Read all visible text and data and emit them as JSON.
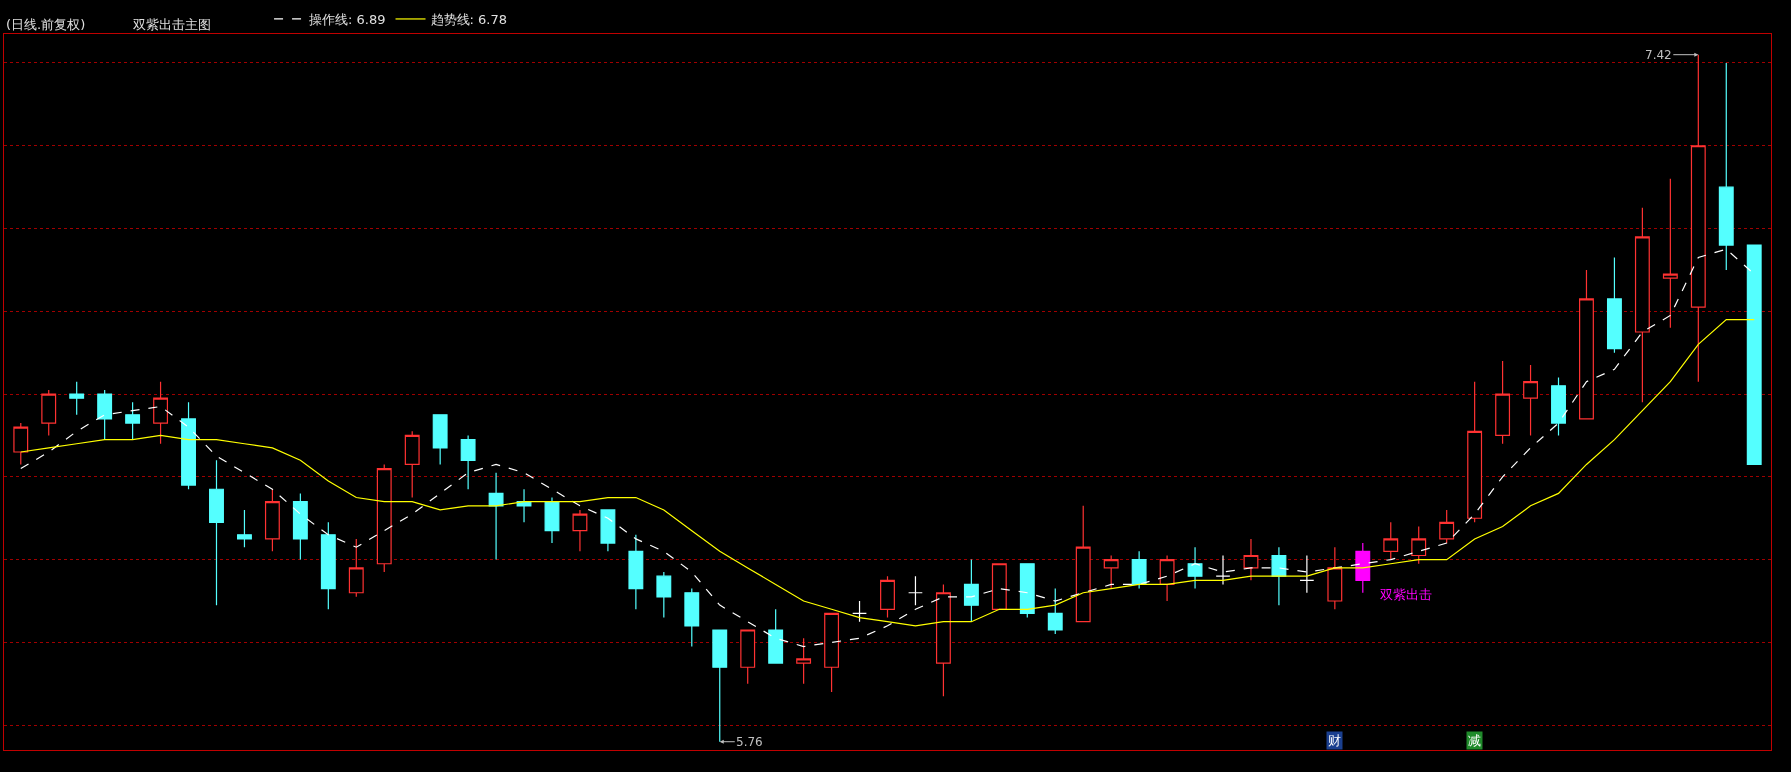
{
  "chart_data": {
    "type": "candlestick",
    "title": "(日线.前复权)",
    "subtitle": "双紫出击主图",
    "categories": [
      null,
      null,
      null,
      null,
      null,
      null,
      null,
      null,
      null,
      null,
      null,
      null,
      null,
      null,
      null,
      null,
      null,
      null,
      null,
      null,
      null,
      null,
      null,
      null,
      null,
      null,
      null,
      null,
      null,
      null,
      null,
      null,
      null,
      null,
      null,
      null,
      null,
      null,
      null,
      null,
      null,
      null,
      null,
      null,
      null,
      null,
      null,
      null,
      null,
      null,
      null,
      null,
      null,
      null,
      null,
      null,
      null,
      null,
      null,
      null,
      null,
      null,
      null
    ],
    "ohlc": [
      [
        6.46,
        6.53,
        6.43,
        6.52
      ],
      [
        6.53,
        6.61,
        6.5,
        6.6
      ],
      [
        6.6,
        6.63,
        6.55,
        6.59
      ],
      [
        6.6,
        6.61,
        6.49,
        6.54
      ],
      [
        6.55,
        6.58,
        6.49,
        6.53
      ],
      [
        6.53,
        6.63,
        6.48,
        6.59
      ],
      [
        6.54,
        6.58,
        6.37,
        6.38
      ],
      [
        6.37,
        6.44,
        6.09,
        6.29
      ],
      [
        6.26,
        6.32,
        6.23,
        6.25
      ],
      [
        6.25,
        6.37,
        6.22,
        6.34
      ],
      [
        6.34,
        6.36,
        6.2,
        6.25
      ],
      [
        6.26,
        6.29,
        6.08,
        6.13
      ],
      [
        6.12,
        6.25,
        6.11,
        6.18
      ],
      [
        6.19,
        6.43,
        6.17,
        6.42
      ],
      [
        6.43,
        6.51,
        6.35,
        6.5
      ],
      [
        6.55,
        6.55,
        6.43,
        6.47
      ],
      [
        6.49,
        6.5,
        6.37,
        6.44
      ],
      [
        6.36,
        6.41,
        6.2,
        6.33
      ],
      [
        6.34,
        6.37,
        6.29,
        6.33
      ],
      [
        6.34,
        6.35,
        6.24,
        6.27
      ],
      [
        6.27,
        6.32,
        6.22,
        6.31
      ],
      [
        6.32,
        6.32,
        6.22,
        6.24
      ],
      [
        6.22,
        6.26,
        6.08,
        6.13
      ],
      [
        6.16,
        6.17,
        6.06,
        6.11
      ],
      [
        6.12,
        6.13,
        5.99,
        6.04
      ],
      [
        6.03,
        6.03,
        5.76,
        5.94
      ],
      [
        5.94,
        6.03,
        5.9,
        6.03
      ],
      [
        6.03,
        6.08,
        5.95,
        5.95
      ],
      [
        5.95,
        6.01,
        5.9,
        5.96
      ],
      [
        5.94,
        6.07,
        5.88,
        6.07
      ],
      [
        6.07,
        6.1,
        6.05,
        6.07
      ],
      [
        6.08,
        6.16,
        6.06,
        6.15
      ],
      [
        6.12,
        6.16,
        6.09,
        6.12
      ],
      [
        5.95,
        6.14,
        5.87,
        6.12
      ],
      [
        6.14,
        6.2,
        6.05,
        6.09
      ],
      [
        6.08,
        6.19,
        6.08,
        6.19
      ],
      [
        6.19,
        6.19,
        6.06,
        6.07
      ],
      [
        6.07,
        6.13,
        6.02,
        6.03
      ],
      [
        6.05,
        6.33,
        6.05,
        6.23
      ],
      [
        6.18,
        6.21,
        6.13,
        6.2
      ],
      [
        6.2,
        6.22,
        6.13,
        6.14
      ],
      [
        6.14,
        6.21,
        6.1,
        6.2
      ],
      [
        6.19,
        6.23,
        6.13,
        6.16
      ],
      [
        6.16,
        6.21,
        6.14,
        6.16
      ],
      [
        6.18,
        6.25,
        6.15,
        6.21
      ],
      [
        6.21,
        6.23,
        6.09,
        6.16
      ],
      [
        6.15,
        6.21,
        6.12,
        6.15
      ],
      [
        6.1,
        6.23,
        6.08,
        6.18
      ],
      [
        6.15,
        6.24,
        6.12,
        6.22
      ],
      [
        6.22,
        6.29,
        6.2,
        6.25
      ],
      [
        6.21,
        6.28,
        6.19,
        6.25
      ],
      [
        6.25,
        6.32,
        6.24,
        6.29
      ],
      [
        6.3,
        6.63,
        6.29,
        6.51
      ],
      [
        6.5,
        6.68,
        6.48,
        6.6
      ],
      [
        6.59,
        6.67,
        6.5,
        6.63
      ],
      [
        6.62,
        6.64,
        6.5,
        6.53
      ],
      [
        6.54,
        6.9,
        6.54,
        6.83
      ],
      [
        6.83,
        6.93,
        6.7,
        6.71
      ],
      [
        6.75,
        7.05,
        6.58,
        6.98
      ],
      [
        6.88,
        7.12,
        6.76,
        6.89
      ],
      [
        6.81,
        7.42,
        6.63,
        7.2
      ],
      [
        7.1,
        7.4,
        6.9,
        6.96
      ],
      [
        6.96,
        6.96,
        6.43,
        6.43
      ]
    ],
    "colors": [
      "#ff3232",
      "#ff3232",
      "#54ffff",
      "#54ffff",
      "#54ffff",
      "#ff3232",
      "#54ffff",
      "#54ffff",
      "#54ffff",
      "#ff3232",
      "#54ffff",
      "#54ffff",
      "#ff3232",
      "#ff3232",
      "#ff3232",
      "#54ffff",
      "#54ffff",
      "#54ffff",
      "#54ffff",
      "#54ffff",
      "#ff3232",
      "#54ffff",
      "#54ffff",
      "#54ffff",
      "#54ffff",
      "#54ffff",
      "#ff3232",
      "#54ffff",
      "#ff3232",
      "#ff3232",
      "#ffffff",
      "#ff3232",
      "#ffffff",
      "#ff3232",
      "#54ffff",
      "#ff3232",
      "#54ffff",
      "#54ffff",
      "#ff3232",
      "#ff3232",
      "#54ffff",
      "#ff3232",
      "#54ffff",
      "#ffffff",
      "#ff3232",
      "#54ffff",
      "#ffffff",
      "#ff3232",
      "#ff00ff",
      "#ff3232",
      "#ff3232",
      "#ff3232",
      "#ff3232",
      "#ff3232",
      "#ff3232",
      "#54ffff",
      "#ff3232",
      "#54ffff",
      "#ff3232",
      "#ff3232",
      "#ff3232",
      "#54ffff",
      "#54ffff"
    ],
    "series": [
      {
        "name": "操作线: 6.89",
        "type": "line",
        "color": "#ffffff",
        "line_style": "dashed",
        "values": [
          6.42,
          6.46,
          6.51,
          6.55,
          6.56,
          6.57,
          6.52,
          6.45,
          6.41,
          6.37,
          6.31,
          6.26,
          6.23,
          6.27,
          6.31,
          6.36,
          6.41,
          6.43,
          6.41,
          6.37,
          6.33,
          6.3,
          6.25,
          6.22,
          6.17,
          6.09,
          6.05,
          6.01,
          5.99,
          6.0,
          6.01,
          6.04,
          6.08,
          6.11,
          6.11,
          6.13,
          6.12,
          6.1,
          6.12,
          6.14,
          6.14,
          6.16,
          6.19,
          6.17,
          6.18,
          6.18,
          6.17,
          6.18,
          6.19,
          6.2,
          6.22,
          6.24,
          6.31,
          6.4,
          6.47,
          6.53,
          6.63,
          6.66,
          6.75,
          6.79,
          6.93,
          6.95,
          6.89
        ]
      },
      {
        "name": "趋势线: 6.78",
        "type": "line",
        "color": "#ffff00",
        "line_style": "solid",
        "values": [
          6.46,
          6.47,
          6.48,
          6.49,
          6.49,
          6.5,
          6.49,
          6.49,
          6.48,
          6.47,
          6.44,
          6.39,
          6.35,
          6.34,
          6.34,
          6.32,
          6.33,
          6.33,
          6.34,
          6.34,
          6.34,
          6.35,
          6.35,
          6.32,
          6.27,
          6.22,
          6.18,
          6.14,
          6.1,
          6.08,
          6.06,
          6.05,
          6.04,
          6.05,
          6.05,
          6.08,
          6.08,
          6.09,
          6.12,
          6.13,
          6.14,
          6.14,
          6.15,
          6.15,
          6.16,
          6.16,
          6.16,
          6.18,
          6.18,
          6.19,
          6.2,
          6.2,
          6.25,
          6.28,
          6.33,
          6.36,
          6.43,
          6.49,
          6.56,
          6.63,
          6.72,
          6.78,
          6.78
        ]
      }
    ],
    "ylim": [
      5.74,
      7.47
    ],
    "yticks": [
      {
        "value": 5.8,
        "label": null
      },
      {
        "value": 6.0,
        "label": null
      },
      {
        "value": 6.2,
        "label": null
      },
      {
        "value": 6.4,
        "label": null
      },
      {
        "value": 6.6,
        "label": null
      },
      {
        "value": 6.8,
        "label": null
      },
      {
        "value": 7.0,
        "label": null
      },
      {
        "value": 7.2,
        "label": null
      },
      {
        "value": 7.4,
        "label": null
      }
    ],
    "grid": "y",
    "tick_labels": false,
    "legend": "top left",
    "annotations": [
      "7.42",
      "5.76",
      "双紫出击",
      "财",
      "减"
    ]
  }
}
